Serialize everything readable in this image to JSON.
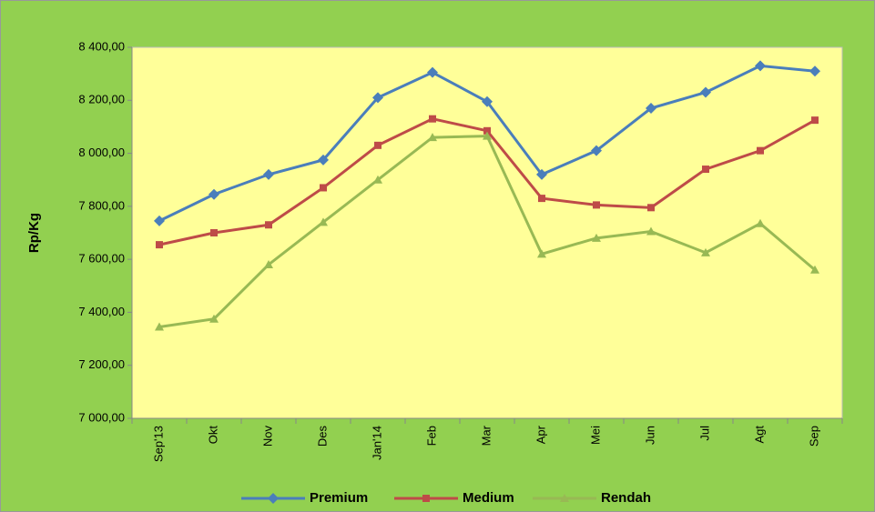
{
  "chart_data": {
    "type": "line",
    "ylabel": "Rp/Kg",
    "categories": [
      "Sep'13",
      "Okt",
      "Nov",
      "Des",
      "Jan'14",
      "Feb",
      "Mar",
      "Apr",
      "Mei",
      "Jun",
      "Jul",
      "Agt",
      "Sep"
    ],
    "series": [
      {
        "name": "Premium",
        "color": "#4a7ebb",
        "marker": "diamond",
        "values": [
          7745,
          7845,
          7920,
          7975,
          8210,
          8305,
          8195,
          7920,
          8010,
          8170,
          8230,
          8330,
          8310
        ]
      },
      {
        "name": "Medium",
        "color": "#be4b48",
        "marker": "square",
        "values": [
          7655,
          7700,
          7730,
          7870,
          8030,
          8130,
          8085,
          7830,
          7805,
          7795,
          7940,
          8010,
          8125
        ]
      },
      {
        "name": "Rendah",
        "color": "#98b954",
        "marker": "triangle",
        "values": [
          7345,
          7375,
          7580,
          7740,
          7900,
          8060,
          8065,
          7620,
          7680,
          7705,
          7625,
          7735,
          7560
        ]
      }
    ],
    "ylim": [
      7000,
      8400
    ],
    "yticks": [
      {
        "value": 7000,
        "label": "7 000,00"
      },
      {
        "value": 7200,
        "label": "7 200,00"
      },
      {
        "value": 7400,
        "label": "7 400,00"
      },
      {
        "value": 7600,
        "label": "7 600,00"
      },
      {
        "value": 7800,
        "label": "7 800,00"
      },
      {
        "value": 8000,
        "label": "8 000,00"
      },
      {
        "value": 8200,
        "label": "8 200,00"
      },
      {
        "value": 8400,
        "label": "8 400,00"
      }
    ],
    "legend": "bottom"
  }
}
